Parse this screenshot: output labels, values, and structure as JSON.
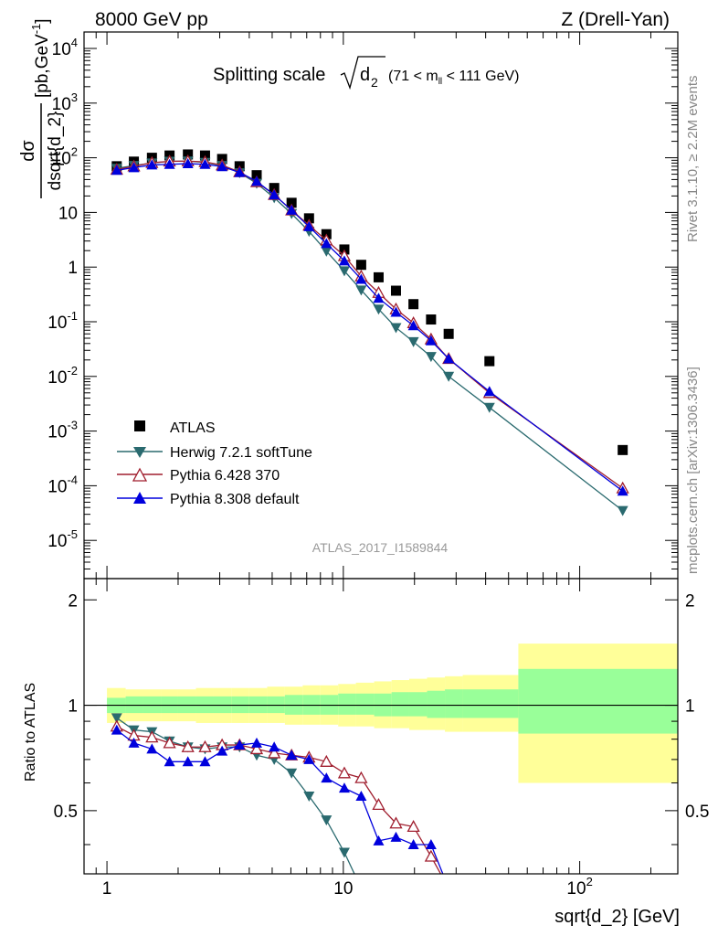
{
  "header": {
    "left": "8000 GeV pp",
    "right": "Z (Drell-Yan)"
  },
  "top_panel": {
    "title_main": "Splitting scale",
    "title_sub": "d",
    "title_sub_index": "2",
    "title_range_pre": "(71 < m",
    "title_range_idx": "ll",
    "title_range_post": " < 111 GeV)",
    "ylabel_num": "dσ",
    "ylabel_den": "dsqrt{d_2}",
    "ylabel_unit": "[pb,GeV",
    "ylabel_unit_exp": "-1",
    "ylabel_unit_close": "]",
    "watermark": "ATLAS_2017_I1589844"
  },
  "bottom_panel": {
    "ylabel": "Ratio to ATLAS",
    "xlabel": "sqrt{d_2} [GeV]"
  },
  "side_labels": {
    "upper": "Rivet 3.1.10, ≥ 2.2M events",
    "lower": "mcplots.cern.ch [arXiv:1306.3436]"
  },
  "legend": [
    {
      "label": "ATLAS",
      "color": "#000000",
      "marker": "square"
    },
    {
      "label": "Herwig 7.2.1 softTune",
      "color": "#2a6a6f",
      "marker": "triangle-down"
    },
    {
      "label": "Pythia 6.428 370",
      "color": "#a01e2e",
      "marker": "triangle-up-open"
    },
    {
      "label": "Pythia 8.308 default",
      "color": "#0000dd",
      "marker": "triangle-up"
    }
  ],
  "chart_data": [
    {
      "type": "scatter",
      "xscale": "log",
      "yscale": "log",
      "xlim": [
        0.8,
        260
      ],
      "ylim": [
        2e-06,
        20000
      ],
      "y_ticks": [
        "10^-5",
        "10^-4",
        "10^-3",
        "10^-2",
        "10^-1",
        "1",
        "10",
        "10^2",
        "10^3",
        "10^4"
      ],
      "series": [
        {
          "name": "ATLAS",
          "x": [
            1.1,
            1.3,
            1.55,
            1.84,
            2.2,
            2.6,
            3.07,
            3.64,
            4.3,
            5.1,
            6.04,
            7.16,
            8.48,
            10.1,
            11.9,
            14.1,
            16.7,
            19.8,
            23.5,
            27.9,
            41.5,
            152
          ],
          "y": [
            70,
            85,
            100,
            110,
            115,
            110,
            95,
            70,
            48,
            28,
            15,
            7.8,
            4.0,
            2.1,
            1.1,
            0.65,
            0.37,
            0.21,
            0.11,
            0.06,
            0.019,
            0.00045
          ]
        },
        {
          "name": "Herwig 7.2.1 softTune",
          "x": [
            1.1,
            1.3,
            1.55,
            1.84,
            2.2,
            2.6,
            3.07,
            3.64,
            4.3,
            5.1,
            6.04,
            7.16,
            8.48,
            10.1,
            11.9,
            14.1,
            16.7,
            19.8,
            23.5,
            27.9,
            41.5,
            152
          ],
          "y": [
            64,
            72,
            80,
            86,
            87,
            82,
            72,
            53,
            34,
            18.5,
            9.5,
            4.5,
            1.95,
            0.85,
            0.38,
            0.17,
            0.078,
            0.043,
            0.023,
            0.01,
            0.0027,
            3.5e-05
          ]
        },
        {
          "name": "Pythia 6.428 370",
          "x": [
            1.1,
            1.3,
            1.55,
            1.84,
            2.2,
            2.6,
            3.07,
            3.64,
            4.3,
            5.1,
            6.04,
            7.16,
            8.48,
            10.1,
            11.9,
            14.1,
            16.7,
            19.8,
            23.5,
            27.9,
            41.5,
            152
          ],
          "y": [
            61,
            70,
            81,
            86,
            87,
            84,
            73,
            55,
            36,
            21,
            11,
            5.8,
            3.1,
            1.6,
            0.68,
            0.34,
            0.17,
            0.095,
            0.048,
            0.021,
            0.005,
            9e-05
          ]
        },
        {
          "name": "Pythia 8.308 default",
          "x": [
            1.1,
            1.3,
            1.55,
            1.84,
            2.2,
            2.6,
            3.07,
            3.64,
            4.3,
            5.1,
            6.04,
            7.16,
            8.48,
            10.1,
            11.9,
            14.1,
            16.7,
            19.8,
            23.5,
            27.9,
            41.5,
            152
          ],
          "y": [
            59,
            66,
            74,
            76,
            78,
            76,
            69,
            54,
            37,
            21,
            11,
            5.5,
            2.7,
            1.3,
            0.6,
            0.27,
            0.15,
            0.085,
            0.045,
            0.021,
            0.0053,
            8e-05
          ]
        }
      ]
    },
    {
      "type": "line",
      "xscale": "log",
      "xlabel": "sqrt{d_2} [GeV]",
      "ylabel": "Ratio to ATLAS",
      "xlim": [
        0.8,
        260
      ],
      "ylim": [
        0.33,
        2.3
      ],
      "y_ticks": [
        "0.5",
        "1",
        "2"
      ],
      "x_ticks": [
        "1",
        "10",
        "10^2"
      ],
      "uncertainty_bands": {
        "edges": [
          1.0,
          1.2,
          1.42,
          1.69,
          2.0,
          2.38,
          2.83,
          3.36,
          4.0,
          4.76,
          5.66,
          6.73,
          8.0,
          9.51,
          11.3,
          13.5,
          16.0,
          19.0,
          22.6,
          26.9,
          32.0,
          55.0,
          260.0
        ],
        "yellow_lo": [
          0.89,
          0.9,
          0.9,
          0.9,
          0.9,
          0.89,
          0.89,
          0.89,
          0.89,
          0.89,
          0.88,
          0.88,
          0.88,
          0.87,
          0.87,
          0.86,
          0.86,
          0.85,
          0.85,
          0.84,
          0.84,
          0.6
        ],
        "yellow_hi": [
          1.12,
          1.11,
          1.11,
          1.11,
          1.11,
          1.12,
          1.12,
          1.12,
          1.12,
          1.13,
          1.13,
          1.14,
          1.14,
          1.15,
          1.16,
          1.17,
          1.18,
          1.19,
          1.2,
          1.21,
          1.22,
          1.5
        ],
        "green_lo": [
          0.95,
          0.95,
          0.95,
          0.95,
          0.95,
          0.95,
          0.95,
          0.95,
          0.95,
          0.95,
          0.94,
          0.94,
          0.94,
          0.94,
          0.94,
          0.93,
          0.93,
          0.93,
          0.92,
          0.92,
          0.92,
          0.83
        ],
        "green_hi": [
          1.05,
          1.06,
          1.06,
          1.06,
          1.06,
          1.06,
          1.06,
          1.06,
          1.06,
          1.06,
          1.07,
          1.07,
          1.07,
          1.08,
          1.08,
          1.08,
          1.09,
          1.09,
          1.1,
          1.11,
          1.11,
          1.27
        ]
      },
      "series": [
        {
          "name": "Herwig 7.2.1 softTune",
          "x": [
            1.1,
            1.3,
            1.55,
            1.84,
            2.2,
            2.6,
            3.07,
            3.64,
            4.3,
            5.1,
            6.04,
            7.16,
            8.48,
            10.1,
            11.9
          ],
          "y": [
            0.92,
            0.85,
            0.84,
            0.79,
            0.76,
            0.75,
            0.76,
            0.76,
            0.72,
            0.7,
            0.64,
            0.55,
            0.47,
            0.38,
            0.3
          ]
        },
        {
          "name": "Pythia 6.428 370",
          "x": [
            1.1,
            1.3,
            1.55,
            1.84,
            2.2,
            2.6,
            3.07,
            3.64,
            4.3,
            5.1,
            6.04,
            7.16,
            8.48,
            10.1,
            11.9,
            14.1,
            16.7,
            19.8,
            23.5,
            27.9
          ],
          "y": [
            0.87,
            0.82,
            0.81,
            0.78,
            0.76,
            0.76,
            0.77,
            0.77,
            0.75,
            0.73,
            0.72,
            0.71,
            0.69,
            0.64,
            0.62,
            0.52,
            0.46,
            0.45,
            0.37,
            0.3
          ]
        },
        {
          "name": "Pythia 8.308 default",
          "x": [
            1.1,
            1.3,
            1.55,
            1.84,
            2.2,
            2.6,
            3.07,
            3.64,
            4.3,
            5.1,
            6.04,
            7.16,
            8.48,
            10.1,
            11.9,
            14.1,
            16.7,
            19.8,
            23.5,
            27.9
          ],
          "y": [
            0.85,
            0.78,
            0.75,
            0.69,
            0.69,
            0.69,
            0.74,
            0.77,
            0.78,
            0.76,
            0.72,
            0.7,
            0.62,
            0.58,
            0.55,
            0.41,
            0.42,
            0.4,
            0.4,
            0.3
          ]
        }
      ]
    }
  ]
}
